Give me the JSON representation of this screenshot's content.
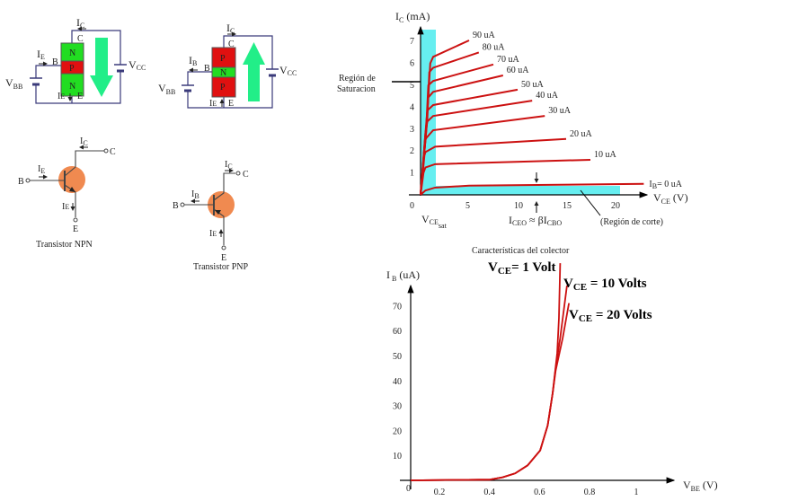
{
  "colors": {
    "n_region": "#22dd22",
    "p_region": "#e01010",
    "current_arrow": "#22ee88",
    "transistor_body": "#f08a50",
    "wire": "#3a3a7a",
    "curve": "#cc1111",
    "region_fill": "#66eef0"
  },
  "npn_block": {
    "ic": "I",
    "ic_sub": "C",
    "c": "C",
    "ib": "I",
    "ib_sub": "E",
    "b": "B",
    "vbb": "V",
    "vbb_sub": "BB",
    "vcc": "V",
    "vcc_sub": "CC",
    "ie": "I",
    "ie_sub": "E",
    "e": "E",
    "layers": [
      "N",
      "P",
      "N"
    ]
  },
  "pnp_block": {
    "ic": "I",
    "ic_sub": "C",
    "c": "C",
    "ib": "I",
    "ib_sub": "B",
    "b": "B",
    "vbb": "V",
    "vbb_sub": "BB",
    "vcc": "V",
    "vcc_sub": "CC",
    "ie": "I",
    "ie_sub": "E",
    "e": "E",
    "layers": [
      "P",
      "N",
      "P"
    ]
  },
  "npn_symbol": {
    "ic": "I",
    "ic_sub": "C",
    "c": "C",
    "ib": "I",
    "ib_sub": "E",
    "b": "B",
    "ie": "I",
    "ie_sub": "E",
    "e": "E",
    "caption": "Transistor NPN"
  },
  "pnp_symbol": {
    "ic": "I",
    "ic_sub": "C",
    "c": "C",
    "ib": "I",
    "ib_sub": "B",
    "b": "B",
    "ie": "I",
    "ie_sub": "E",
    "e": "E",
    "caption": "Transistor PNP"
  },
  "chart_data": [
    {
      "type": "line",
      "title": "Características del colector",
      "ylabel": "I_C (mA)",
      "xlabel": "V_CE (V)",
      "xlim": [
        0,
        23
      ],
      "ylim": [
        0,
        7.5
      ],
      "xticks": [
        "0",
        "5",
        "10",
        "15",
        "20"
      ],
      "yticks": [
        "1",
        "2",
        "3",
        "4",
        "5",
        "6",
        "7"
      ],
      "annotations": {
        "saturation": [
          "Región de",
          "Saturacion"
        ],
        "cutoff": "(Región de corte)",
        "vcesat": "V",
        "vcesat_sub": "CE",
        "vcesat_sub2": "sat",
        "iceo": "I",
        "iceo_sub": "CEO",
        "iceo_mid": " ≈ βI",
        "icbo_sub": "CBO"
      },
      "series": [
        {
          "name": "90 uA",
          "points": [
            [
              0,
              0
            ],
            [
              0.6,
              3
            ],
            [
              1,
              6
            ],
            [
              1.3,
              6.3
            ],
            [
              5,
              7.05
            ]
          ]
        },
        {
          "name": "80 uA",
          "points": [
            [
              0,
              0
            ],
            [
              0.7,
              3.5
            ],
            [
              0.9,
              5.6
            ],
            [
              1.3,
              5.8
            ],
            [
              6,
              6.5
            ]
          ]
        },
        {
          "name": "70 uA",
          "points": [
            [
              0,
              0
            ],
            [
              0.6,
              3.2
            ],
            [
              0.8,
              5.0
            ],
            [
              1.3,
              5.2
            ],
            [
              7.5,
              5.95
            ]
          ]
        },
        {
          "name": "60 uA",
          "points": [
            [
              0,
              0
            ],
            [
              0.6,
              3.2
            ],
            [
              0.8,
              4.45
            ],
            [
              1.3,
              4.7
            ],
            [
              8.5,
              5.45
            ]
          ]
        },
        {
          "name": "50 uA",
          "points": [
            [
              0,
              0
            ],
            [
              0.5,
              2.8
            ],
            [
              0.7,
              3.85
            ],
            [
              1.3,
              4.1
            ],
            [
              10,
              4.8
            ]
          ]
        },
        {
          "name": "40 uA",
          "points": [
            [
              0,
              0
            ],
            [
              0.5,
              2.8
            ],
            [
              0.7,
              3.35
            ],
            [
              1.3,
              3.6
            ],
            [
              11.5,
              4.3
            ]
          ]
        },
        {
          "name": "30 uA",
          "points": [
            [
              0,
              0
            ],
            [
              0.5,
              2.5
            ],
            [
              0.6,
              2.6
            ],
            [
              1.3,
              2.95
            ],
            [
              12.8,
              3.6
            ]
          ]
        },
        {
          "name": "20 uA",
          "points": [
            [
              0,
              0
            ],
            [
              0.4,
              1.8
            ],
            [
              0.5,
              1.95
            ],
            [
              1.5,
              2.2
            ],
            [
              15,
              2.55
            ]
          ]
        },
        {
          "name": "10 uA",
          "points": [
            [
              0,
              0
            ],
            [
              0.3,
              1.0
            ],
            [
              0.5,
              1.25
            ],
            [
              1.5,
              1.4
            ],
            [
              17.5,
              1.6
            ]
          ]
        },
        {
          "name": "I_B= 0 uA",
          "label_main": "I",
          "label_sub": "B",
          "label_rest": "= 0 uA",
          "points": [
            [
              0,
              0
            ],
            [
              0.5,
              0.2
            ],
            [
              1.5,
              0.33
            ],
            [
              5,
              0.42
            ],
            [
              23,
              0.5
            ]
          ]
        }
      ]
    },
    {
      "type": "line",
      "ylabel": "I_B (uA)",
      "xlabel": "V_BE (V)",
      "xlim": [
        0,
        1.1
      ],
      "ylim": [
        0,
        80
      ],
      "xticks": [
        "0",
        "0.2",
        "0.4",
        "0.6",
        "0.8",
        "1"
      ],
      "yticks": [
        "10",
        "20",
        "30",
        "40",
        "50",
        "60",
        "70"
      ],
      "series": [
        {
          "name": "V_CE= 1 Volt",
          "label_main": "V",
          "label_sub": "CE",
          "label_rest": "= 1 Volt",
          "points": [
            [
              0.08,
              0
            ],
            [
              0.4,
              0.3
            ],
            [
              0.45,
              1.2
            ],
            [
              0.5,
              2.8
            ],
            [
              0.55,
              6
            ],
            [
              0.6,
              12
            ],
            [
              0.63,
              22
            ],
            [
              0.65,
              35
            ],
            [
              0.668,
              51
            ],
            [
              0.675,
              65
            ],
            [
              0.68,
              87
            ]
          ]
        },
        {
          "name": "V_CE = 10 Volts",
          "label_main": "V",
          "label_sub": "CE",
          "label_rest": " = 10 Volts",
          "points": [
            [
              0.08,
              0
            ],
            [
              0.4,
              0.3
            ],
            [
              0.45,
              1.2
            ],
            [
              0.5,
              2.8
            ],
            [
              0.55,
              6
            ],
            [
              0.6,
              12
            ],
            [
              0.63,
              22
            ],
            [
              0.65,
              35
            ],
            [
              0.662,
              45
            ],
            [
              0.68,
              57
            ],
            [
              0.707,
              78
            ]
          ]
        },
        {
          "name": "V_CE = 20 Volts",
          "label_main": "V",
          "label_sub": "CE",
          "label_rest": " = 20 Volts",
          "points": [
            [
              0.08,
              0
            ],
            [
              0.4,
              0.3
            ],
            [
              0.45,
              1.2
            ],
            [
              0.5,
              2.8
            ],
            [
              0.55,
              6
            ],
            [
              0.6,
              12
            ],
            [
              0.63,
              22
            ],
            [
              0.65,
              35
            ],
            [
              0.662,
              44
            ],
            [
              0.69,
              57
            ],
            [
              0.715,
              71
            ]
          ]
        }
      ]
    }
  ]
}
